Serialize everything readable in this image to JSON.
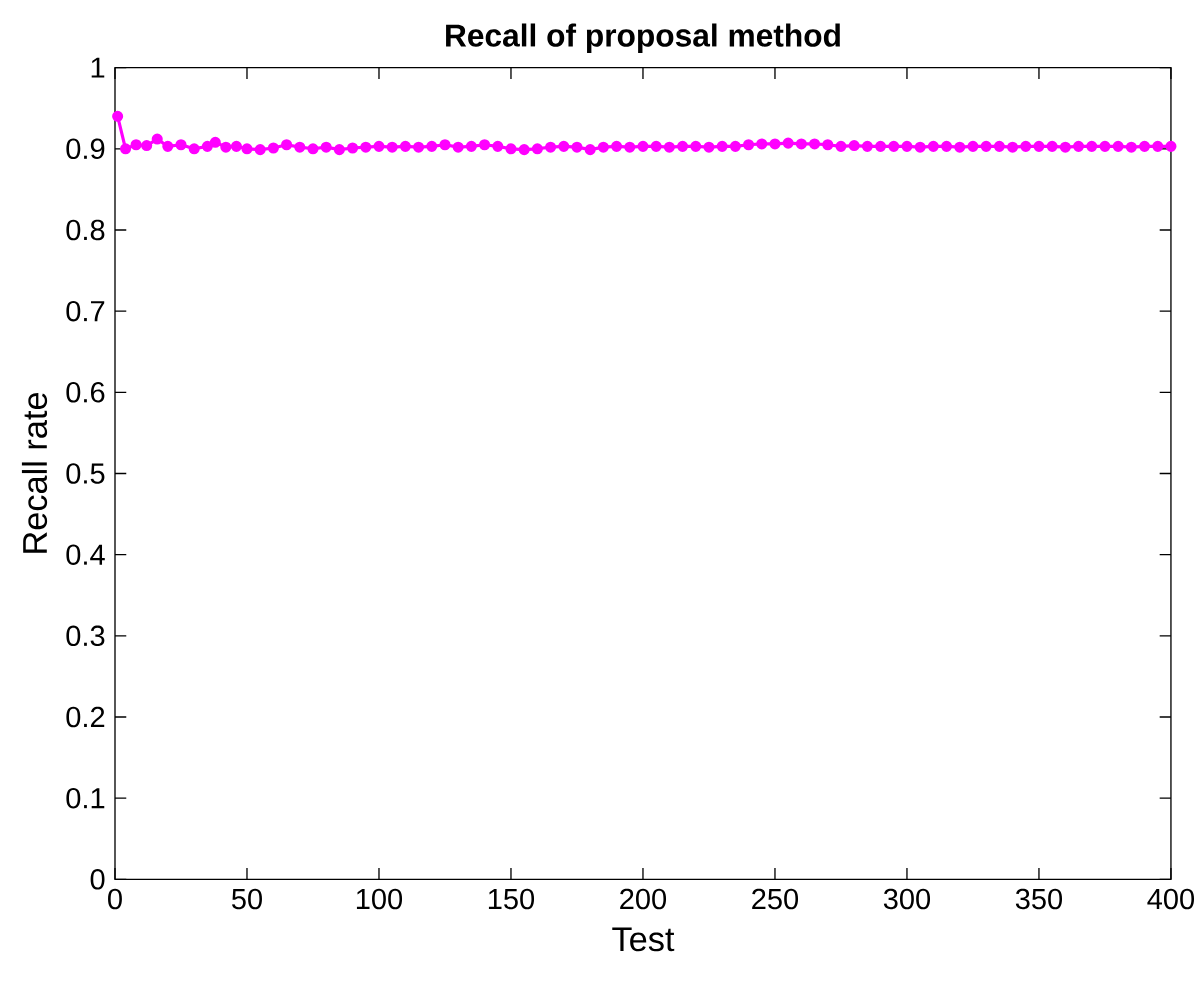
{
  "chart_data": {
    "type": "line",
    "title": "Recall of proposal method",
    "xlabel": "Test",
    "ylabel": "Recall rate",
    "x": [
      1,
      4,
      8,
      12,
      16,
      20,
      25,
      30,
      35,
      38,
      42,
      46,
      50,
      55,
      60,
      65,
      70,
      75,
      80,
      85,
      90,
      95,
      100,
      105,
      110,
      115,
      120,
      125,
      130,
      135,
      140,
      145,
      150,
      155,
      160,
      165,
      170,
      175,
      180,
      185,
      190,
      195,
      200,
      205,
      210,
      215,
      220,
      225,
      230,
      235,
      240,
      245,
      250,
      255,
      260,
      265,
      270,
      275,
      280,
      285,
      290,
      295,
      300,
      305,
      310,
      315,
      320,
      325,
      330,
      335,
      340,
      345,
      350,
      355,
      360,
      365,
      370,
      375,
      380,
      385,
      390,
      395,
      400
    ],
    "series": [
      {
        "color": "#ff00ff",
        "values": [
          0.94,
          0.9,
          0.905,
          0.904,
          0.912,
          0.903,
          0.905,
          0.9,
          0.903,
          0.908,
          0.902,
          0.903,
          0.9,
          0.899,
          0.901,
          0.905,
          0.902,
          0.9,
          0.902,
          0.899,
          0.901,
          0.902,
          0.903,
          0.902,
          0.903,
          0.902,
          0.903,
          0.905,
          0.902,
          0.903,
          0.905,
          0.903,
          0.9,
          0.899,
          0.9,
          0.902,
          0.903,
          0.902,
          0.899,
          0.902,
          0.903,
          0.902,
          0.903,
          0.903,
          0.902,
          0.903,
          0.903,
          0.902,
          0.903,
          0.903,
          0.905,
          0.906,
          0.906,
          0.907,
          0.906,
          0.906,
          0.905,
          0.903,
          0.904,
          0.903,
          0.903,
          0.903,
          0.903,
          0.902,
          0.903,
          0.903,
          0.902,
          0.903,
          0.903,
          0.903,
          0.902,
          0.903,
          0.903,
          0.903,
          0.902,
          0.903,
          0.903,
          0.903,
          0.903,
          0.902,
          0.903,
          0.903,
          0.903
        ]
      }
    ],
    "marker": "circle",
    "line_style": "solid",
    "grid": false,
    "xlim": [
      0,
      400
    ],
    "ylim": [
      0,
      1
    ],
    "xticks": [
      0,
      50,
      100,
      150,
      200,
      250,
      300,
      350,
      400
    ],
    "yticks": [
      0,
      0.1,
      0.2,
      0.3,
      0.4,
      0.5,
      0.6,
      0.7,
      0.8,
      0.9,
      1
    ]
  }
}
